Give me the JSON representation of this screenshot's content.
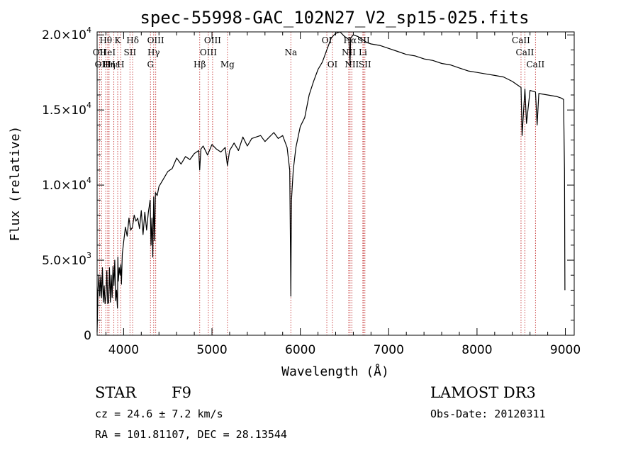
{
  "chart_data": {
    "type": "line",
    "title": "spec-55998-GAC_102N27_V2_sp15-025.fits",
    "xlabel": "Wavelength (Å)",
    "ylabel": "Flux (relative)",
    "xlim": [
      3700,
      9100
    ],
    "ylim": [
      0,
      20200
    ],
    "x_ticks": [
      4000,
      5000,
      6000,
      7000,
      8000,
      9000
    ],
    "x_tick_labels": [
      "4000",
      "5000",
      "6000",
      "7000",
      "8000",
      "9000"
    ],
    "y_ticks": [
      {
        "value": 0,
        "mant": "0",
        "exp": ""
      },
      {
        "value": 5000,
        "mant": "5.0×10",
        "exp": "3"
      },
      {
        "value": 10000,
        "mant": "1.0×10",
        "exp": "4"
      },
      {
        "value": 15000,
        "mant": "1.5×10",
        "exp": "4"
      },
      {
        "value": 20000,
        "mant": "2.0×10",
        "exp": "4"
      }
    ],
    "series": [
      {
        "name": "spectrum",
        "x": [
          3700,
          3710,
          3720,
          3730,
          3740,
          3750,
          3760,
          3770,
          3780,
          3790,
          3800,
          3810,
          3820,
          3830,
          3840,
          3850,
          3860,
          3870,
          3880,
          3890,
          3900,
          3910,
          3920,
          3930,
          3935,
          3940,
          3950,
          3960,
          3968,
          3975,
          3985,
          4000,
          4020,
          4040,
          4060,
          4080,
          4100,
          4120,
          4140,
          4160,
          4180,
          4200,
          4220,
          4240,
          4260,
          4280,
          4300,
          4310,
          4320,
          4330,
          4340,
          4350,
          4360,
          4380,
          4400,
          4450,
          4500,
          4550,
          4600,
          4650,
          4700,
          4750,
          4800,
          4850,
          4861,
          4875,
          4900,
          4950,
          5000,
          5050,
          5100,
          5150,
          5175,
          5200,
          5250,
          5300,
          5350,
          5400,
          5450,
          5500,
          5550,
          5600,
          5650,
          5700,
          5750,
          5800,
          5850,
          5880,
          5890,
          5893,
          5896,
          5900,
          5910,
          5920,
          5950,
          6000,
          6050,
          6100,
          6150,
          6200,
          6250,
          6300,
          6350,
          6400,
          6450,
          6500,
          6550,
          6563,
          6570,
          6600,
          6650,
          6700,
          6750,
          6800,
          6900,
          7000,
          7100,
          7200,
          7300,
          7400,
          7500,
          7600,
          7700,
          7800,
          7900,
          8000,
          8100,
          8200,
          8300,
          8400,
          8450,
          8498,
          8510,
          8542,
          8560,
          8600,
          8662,
          8680,
          8700,
          8800,
          8900,
          8950,
          8980,
          8990,
          8995
        ],
        "y": [
          200,
          3000,
          4000,
          2600,
          3900,
          2500,
          4500,
          2200,
          3300,
          2100,
          2600,
          4300,
          2100,
          2200,
          4500,
          2200,
          4000,
          2500,
          4600,
          3300,
          5000,
          2300,
          3000,
          1800,
          5200,
          3600,
          4500,
          4000,
          4700,
          3400,
          5400,
          6200,
          7200,
          6600,
          7800,
          7000,
          7200,
          8000,
          7600,
          7800,
          7100,
          8300,
          6700,
          8200,
          7000,
          8200,
          9000,
          6000,
          7800,
          5200,
          9200,
          6300,
          9500,
          9300,
          9900,
          10400,
          10900,
          11100,
          11800,
          11400,
          11900,
          11700,
          12100,
          12300,
          11000,
          12400,
          12600,
          12000,
          12700,
          12400,
          12200,
          12500,
          11300,
          12300,
          12800,
          12300,
          13200,
          12600,
          13100,
          13200,
          13300,
          12900,
          13200,
          13500,
          13100,
          13300,
          12500,
          11000,
          5000,
          2600,
          6000,
          9000,
          10000,
          11000,
          12500,
          13900,
          14500,
          16000,
          16900,
          17700,
          18200,
          19000,
          19800,
          20100,
          20200,
          19900,
          19700,
          18000,
          19800,
          20000,
          19900,
          19700,
          19500,
          19400,
          19300,
          19100,
          18900,
          18700,
          18600,
          18400,
          18300,
          18100,
          18000,
          17800,
          17600,
          17500,
          17400,
          17300,
          17200,
          16900,
          16700,
          16500,
          13300,
          16400,
          14100,
          16300,
          16200,
          14000,
          16100,
          16000,
          15900,
          15800,
          15700,
          11000,
          3000
        ]
      }
    ],
    "line_markers": [
      {
        "wavelength": 3727,
        "label": "OII",
        "row": 2
      },
      {
        "wavelength": 3750,
        "label": "OII",
        "row": 3
      },
      {
        "wavelength": 3798,
        "label": "Hθ",
        "row": 1
      },
      {
        "wavelength": 3820,
        "label": "HeI",
        "row": 2
      },
      {
        "wavelength": 3835,
        "label": "Hη",
        "row": 3
      },
      {
        "wavelength": 3889,
        "label": "Hε",
        "row": 3
      },
      {
        "wavelength": 3933,
        "label": "K",
        "row": 1
      },
      {
        "wavelength": 3968,
        "label": "H",
        "row": 3
      },
      {
        "wavelength": 4072,
        "label": "SII",
        "row": 2
      },
      {
        "wavelength": 4102,
        "label": "Hδ",
        "row": 1
      },
      {
        "wavelength": 4304,
        "label": "G",
        "row": 3
      },
      {
        "wavelength": 4340,
        "label": "Hγ",
        "row": 2
      },
      {
        "wavelength": 4363,
        "label": "OIII",
        "row": 1
      },
      {
        "wavelength": 4861,
        "label": "Hβ",
        "row": 3
      },
      {
        "wavelength": 4959,
        "label": "OIII",
        "row": 2
      },
      {
        "wavelength": 5007,
        "label": "OIII",
        "row": 1
      },
      {
        "wavelength": 5175,
        "label": "Mg",
        "row": 3
      },
      {
        "wavelength": 5893,
        "label": "Na",
        "row": 2
      },
      {
        "wavelength": 6300,
        "label": "OI",
        "row": 1
      },
      {
        "wavelength": 6364,
        "label": "OI",
        "row": 3
      },
      {
        "wavelength": 6548,
        "label": "NII",
        "row": 2
      },
      {
        "wavelength": 6563,
        "label": "Hα",
        "row": 1
      },
      {
        "wavelength": 6583,
        "label": "NII",
        "row": 3
      },
      {
        "wavelength": 6708,
        "label": "Li",
        "row": 2
      },
      {
        "wavelength": 6716,
        "label": "SII",
        "row": 1
      },
      {
        "wavelength": 6731,
        "label": "SII",
        "row": 3
      },
      {
        "wavelength": 8498,
        "label": "CaII",
        "row": 1
      },
      {
        "wavelength": 8542,
        "label": "CaII",
        "row": 2
      },
      {
        "wavelength": 8662,
        "label": "CaII",
        "row": 3
      }
    ]
  },
  "info": {
    "object_class": "STAR",
    "subclass": "F9",
    "survey": "LAMOST DR3",
    "redshift": "cz = 24.6 ± 7.2 km/s",
    "obs_date": "Obs-Date: 20120311",
    "coords": "RA = 101.81107, DEC =  28.13544"
  },
  "colors": {
    "spectrum": "#000000",
    "marker": "#c84040",
    "axes": "#000000",
    "background": "#ffffff"
  }
}
